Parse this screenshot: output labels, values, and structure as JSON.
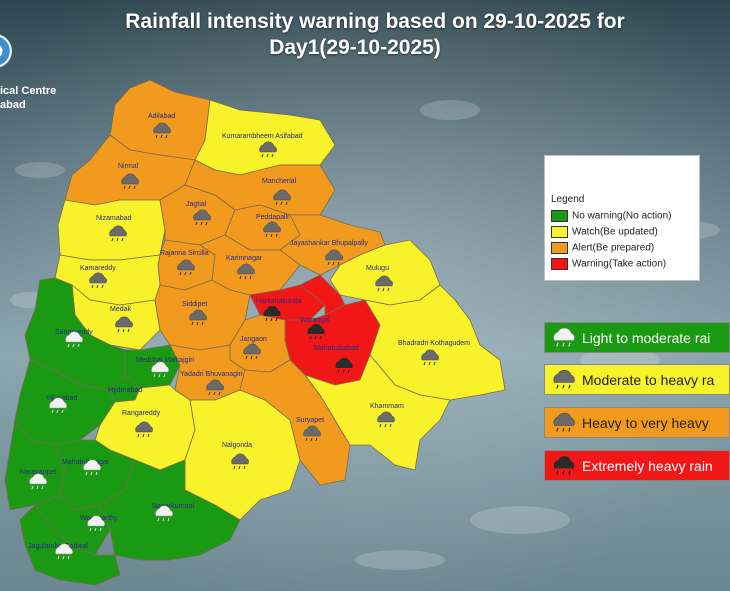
{
  "title": {
    "line1": "Rainfall intensity warning based on 29-10-2025 for",
    "line2": "Day1(29-10-2025)"
  },
  "organization": {
    "line1": "ical Centre",
    "line2": "abad"
  },
  "legend": {
    "heading": "Legend",
    "items": [
      {
        "label": "No warning(No action)",
        "color": "#1a9a12"
      },
      {
        "label": "Watch(Be updated)",
        "color": "#f7f22a"
      },
      {
        "label": "Alert(Be prepared)",
        "color": "#f29a1e"
      },
      {
        "label": "Warning(Take action)",
        "color": "#f21717"
      }
    ]
  },
  "rainfall_key": [
    {
      "label": "Light to moderate rai",
      "color": "#1a9a12",
      "text_color": "#ffffff",
      "icon": "cloud-light-rain-icon"
    },
    {
      "label": "Moderate to heavy ra",
      "color": "#f7f22a",
      "text_color": "#222222",
      "icon": "cloud-moderate-rain-icon"
    },
    {
      "label": "Heavy to very heavy",
      "color": "#f29a1e",
      "text_color": "#222222",
      "icon": "cloud-heavy-rain-icon"
    },
    {
      "label": "Extremely heavy rain",
      "color": "#f21717",
      "text_color": "#ffffff",
      "icon": "cloud-extreme-rain-icon"
    }
  ],
  "districts": [
    {
      "name": "Adilabad",
      "level": "alert",
      "color": "#f29a1e"
    },
    {
      "name": "Kumarambheem Asifabad",
      "level": "watch",
      "color": "#f7f22a"
    },
    {
      "name": "Nirmal",
      "level": "alert",
      "color": "#f29a1e"
    },
    {
      "name": "Mancherial",
      "level": "alert",
      "color": "#f29a1e"
    },
    {
      "name": "Nizamabad",
      "level": "watch",
      "color": "#f7f22a"
    },
    {
      "name": "Jagtial",
      "level": "alert",
      "color": "#f29a1e"
    },
    {
      "name": "Peddapalli",
      "level": "alert",
      "color": "#f29a1e"
    },
    {
      "name": "Jayashankar Bhupalpally",
      "level": "alert",
      "color": "#f29a1e"
    },
    {
      "name": "Rajanna Sircilla",
      "level": "alert",
      "color": "#f29a1e"
    },
    {
      "name": "Karimnagar",
      "level": "alert",
      "color": "#f29a1e"
    },
    {
      "name": "Kamareddy",
      "level": "watch",
      "color": "#f7f22a"
    },
    {
      "name": "Mulugu",
      "level": "watch",
      "color": "#f7f22a"
    },
    {
      "name": "Medak",
      "level": "watch",
      "color": "#f7f22a"
    },
    {
      "name": "Siddipet",
      "level": "alert",
      "color": "#f29a1e"
    },
    {
      "name": "Hanumakonda",
      "level": "warning",
      "color": "#f21717"
    },
    {
      "name": "Warangal",
      "level": "warning",
      "color": "#f21717"
    },
    {
      "name": "Sangareddy",
      "level": "no-warning",
      "color": "#1a9a12"
    },
    {
      "name": "Mahabubabad",
      "level": "warning",
      "color": "#f21717"
    },
    {
      "name": "Bhadradri Kothagudem",
      "level": "watch",
      "color": "#f7f22a"
    },
    {
      "name": "Medchal Malkajgiri",
      "level": "no-warning",
      "color": "#1a9a12"
    },
    {
      "name": "Jangaon",
      "level": "alert",
      "color": "#f29a1e"
    },
    {
      "name": "Yadadri Bhuvanagiri",
      "level": "alert",
      "color": "#f29a1e"
    },
    {
      "name": "Hyderabad",
      "level": "no-warning",
      "color": "#1a9a12"
    },
    {
      "name": "Vikarabad",
      "level": "no-warning",
      "color": "#1a9a12"
    },
    {
      "name": "Rangareddy",
      "level": "watch",
      "color": "#f7f22a"
    },
    {
      "name": "Khammam",
      "level": "watch",
      "color": "#f7f22a"
    },
    {
      "name": "Suryapet",
      "level": "alert",
      "color": "#f29a1e"
    },
    {
      "name": "Nalgonda",
      "level": "watch",
      "color": "#f7f22a"
    },
    {
      "name": "Narayanpet",
      "level": "no-warning",
      "color": "#1a9a12"
    },
    {
      "name": "Mahabubnagar",
      "level": "no-warning",
      "color": "#1a9a12"
    },
    {
      "name": "Wanaparthy",
      "level": "no-warning",
      "color": "#1a9a12"
    },
    {
      "name": "Nagarkurnool",
      "level": "no-warning",
      "color": "#1a9a12"
    },
    {
      "name": "Jogulamba Gadwal",
      "level": "no-warning",
      "color": "#1a9a12"
    }
  ]
}
